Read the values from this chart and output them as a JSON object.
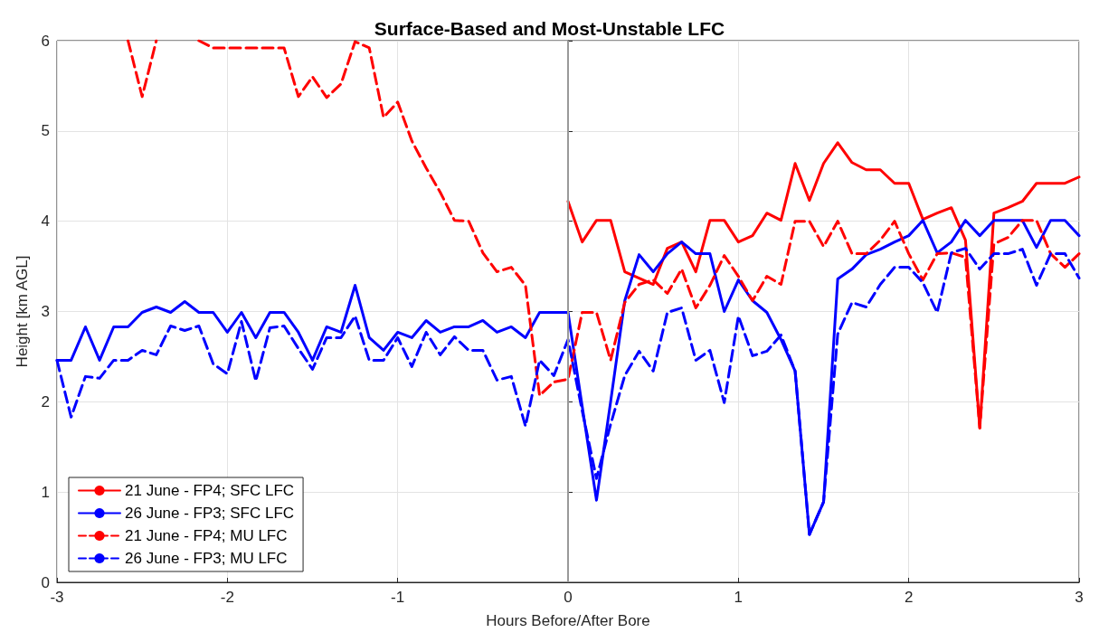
{
  "chart_data": {
    "type": "line",
    "title": "Surface-Based and Most-Unstable LFC",
    "xlabel": "Hours Before/After Bore",
    "ylabel": "Height [km AGL]",
    "x": [
      -3,
      -2.917,
      -2.833,
      -2.75,
      -2.667,
      -2.583,
      -2.5,
      -2.417,
      -2.333,
      -2.25,
      -2.167,
      -2.083,
      -2,
      -1.917,
      -1.833,
      -1.75,
      -1.667,
      -1.583,
      -1.5,
      -1.417,
      -1.333,
      -1.25,
      -1.167,
      -1.083,
      -1,
      -0.917,
      -0.833,
      -0.75,
      -0.667,
      -0.583,
      -0.5,
      -0.417,
      -0.333,
      -0.25,
      -0.167,
      -0.083,
      0,
      0.083,
      0.167,
      0.25,
      0.333,
      0.417,
      0.5,
      0.583,
      0.667,
      0.75,
      0.833,
      0.917,
      1,
      1.083,
      1.167,
      1.25,
      1.333,
      1.417,
      1.5,
      1.583,
      1.667,
      1.75,
      1.833,
      1.917,
      2,
      2.083,
      2.167,
      2.25,
      2.333,
      2.417,
      2.5,
      2.583,
      2.667,
      2.75,
      2.833,
      2.917,
      3
    ],
    "series": [
      {
        "name": "21 June - FP4; SFC LFC",
        "color": "#ff0000",
        "line_style": "solid",
        "values": [
          null,
          null,
          null,
          null,
          null,
          null,
          null,
          null,
          null,
          null,
          null,
          null,
          null,
          null,
          null,
          null,
          null,
          null,
          null,
          null,
          null,
          null,
          null,
          null,
          null,
          null,
          null,
          null,
          null,
          null,
          null,
          null,
          null,
          null,
          null,
          null,
          4.22,
          3.77,
          4.01,
          4.01,
          3.44,
          3.37,
          3.3,
          3.7,
          3.77,
          3.44,
          4.01,
          4.01,
          3.77,
          3.84,
          4.09,
          4.01,
          4.64,
          4.23,
          4.64,
          4.87,
          4.65,
          4.57,
          4.57,
          4.42,
          4.42,
          4.02,
          4.09,
          4.15,
          3.79,
          1.71,
          4.09,
          4.15,
          4.22,
          4.42,
          4.42,
          4.42,
          4.49
        ]
      },
      {
        "name": "26 June - FP3; SFC LFC",
        "color": "#0000ff",
        "line_style": "solid",
        "values": [
          2.46,
          2.46,
          2.83,
          2.46,
          2.83,
          2.83,
          2.99,
          3.05,
          2.99,
          3.11,
          2.99,
          2.99,
          2.77,
          2.99,
          2.71,
          2.99,
          2.99,
          2.77,
          2.46,
          2.83,
          2.77,
          3.29,
          2.71,
          2.57,
          2.77,
          2.71,
          2.9,
          2.77,
          2.83,
          2.83,
          2.9,
          2.77,
          2.83,
          2.71,
          2.99,
          2.99,
          2.99,
          1.95,
          0.91,
          2.0,
          3.12,
          3.63,
          3.44,
          3.64,
          3.77,
          3.64,
          3.64,
          3.0,
          3.35,
          3.12,
          2.99,
          2.69,
          2.34,
          0.53,
          0.89,
          3.36,
          3.47,
          3.63,
          3.69,
          3.77,
          3.84,
          4.01,
          3.65,
          3.77,
          4.01,
          3.84,
          4.01,
          4.01,
          4.01,
          3.71,
          4.01,
          4.01,
          3.84
        ]
      },
      {
        "name": "21 June - FP4; MU LFC",
        "color": "#ff0000",
        "line_style": "dashed",
        "values": [
          null,
          null,
          null,
          null,
          null,
          6.0,
          5.38,
          6.0,
          null,
          null,
          6.0,
          5.92,
          5.92,
          5.92,
          5.92,
          5.92,
          5.92,
          5.38,
          5.6,
          5.37,
          5.52,
          5.99,
          5.92,
          5.15,
          5.32,
          4.89,
          4.59,
          4.32,
          4.01,
          4.0,
          3.65,
          3.44,
          3.49,
          3.29,
          2.07,
          2.22,
          2.25,
          2.99,
          2.99,
          2.46,
          3.1,
          3.3,
          3.35,
          3.2,
          3.47,
          3.04,
          3.29,
          3.62,
          3.39,
          3.12,
          3.39,
          3.3,
          4.0,
          4.0,
          3.72,
          4.0,
          3.64,
          3.64,
          3.79,
          4.0,
          3.64,
          3.35,
          3.64,
          3.65,
          3.6,
          1.71,
          3.75,
          3.82,
          4.01,
          4.01,
          3.64,
          3.49,
          3.64
        ]
      },
      {
        "name": "26 June - FP3; MU LFC",
        "color": "#0000ff",
        "line_style": "dashed",
        "values": [
          2.46,
          1.83,
          2.28,
          2.26,
          2.46,
          2.46,
          2.57,
          2.52,
          2.84,
          2.79,
          2.84,
          2.42,
          2.31,
          2.89,
          2.23,
          2.82,
          2.84,
          2.59,
          2.36,
          2.71,
          2.71,
          2.95,
          2.46,
          2.46,
          2.71,
          2.39,
          2.77,
          2.52,
          2.72,
          2.57,
          2.57,
          2.24,
          2.28,
          1.73,
          2.46,
          2.29,
          2.69,
          1.9,
          1.15,
          1.75,
          2.29,
          2.56,
          2.34,
          2.99,
          3.04,
          2.46,
          2.57,
          1.99,
          2.95,
          2.51,
          2.56,
          2.74,
          2.34,
          0.53,
          0.89,
          2.75,
          3.1,
          3.05,
          3.3,
          3.49,
          3.49,
          3.32,
          2.99,
          3.65,
          3.7,
          3.47,
          3.64,
          3.64,
          3.69,
          3.29,
          3.64,
          3.64,
          3.37
        ]
      }
    ],
    "xlim": [
      -3,
      3
    ],
    "xticks": [
      -3,
      -2,
      -1,
      0,
      1,
      2,
      3
    ],
    "ylim": [
      0,
      6
    ],
    "yticks": [
      0,
      1,
      2,
      3,
      4,
      5,
      6
    ],
    "ref_lines": [
      {
        "axis": "x",
        "value": 0,
        "label": null,
        "color": "#999999"
      }
    ],
    "grid": true,
    "legend": "bottom left",
    "marker": "none"
  }
}
